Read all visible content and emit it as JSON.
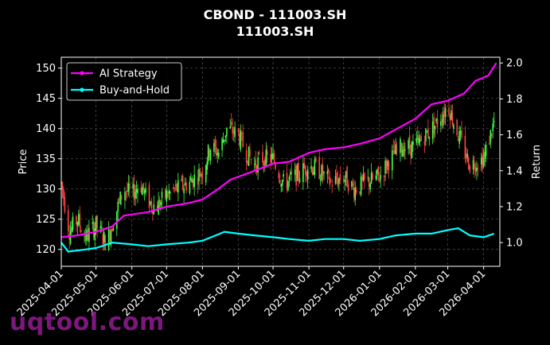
{
  "title_line1": "CBOND - 111003.SH",
  "title_line2": "111003.SH",
  "watermark": "uqtool.com",
  "chart_data": {
    "type": "line",
    "grid": true,
    "legend_placement": "top-left",
    "ylabel": "Price",
    "ylabel_right": "Return",
    "ylim": [
      117.2,
      151.8
    ],
    "ylim_right": [
      0.868,
      2.032
    ],
    "xlim": [
      "2025-04-01",
      "2026-04-15"
    ],
    "x_ticks": [
      "2025-04-01",
      "2025-05-01",
      "2025-06-01",
      "2025-07-01",
      "2025-08-01",
      "2025-09-01",
      "2025-10-01",
      "2025-11-01",
      "2025-12-01",
      "2026-01-01",
      "2026-02-01",
      "2026-03-01",
      "2026-04-01"
    ],
    "y_ticks": [
      120,
      125,
      130,
      135,
      140,
      145,
      150
    ],
    "y_ticks_right": [
      1.0,
      1.2,
      1.4,
      1.6,
      1.8,
      2.0
    ],
    "candle_colors": {
      "up": "#44ff44",
      "down": "#ff4444"
    },
    "price_close": [
      {
        "x": "2025-04-01",
        "y": 131
      },
      {
        "x": "2025-04-08",
        "y": 123
      },
      {
        "x": "2025-04-15",
        "y": 125
      },
      {
        "x": "2025-04-22",
        "y": 122
      },
      {
        "x": "2025-05-01",
        "y": 124
      },
      {
        "x": "2025-05-10",
        "y": 121
      },
      {
        "x": "2025-05-18",
        "y": 126
      },
      {
        "x": "2025-05-25",
        "y": 130
      },
      {
        "x": "2025-06-01",
        "y": 129
      },
      {
        "x": "2025-06-08",
        "y": 131
      },
      {
        "x": "2025-06-15",
        "y": 128
      },
      {
        "x": "2025-06-22",
        "y": 127
      },
      {
        "x": "2025-07-01",
        "y": 129
      },
      {
        "x": "2025-07-10",
        "y": 130
      },
      {
        "x": "2025-07-20",
        "y": 131
      },
      {
        "x": "2025-08-01",
        "y": 133
      },
      {
        "x": "2025-08-08",
        "y": 137
      },
      {
        "x": "2025-08-15",
        "y": 136
      },
      {
        "x": "2025-08-22",
        "y": 140
      },
      {
        "x": "2025-09-01",
        "y": 139
      },
      {
        "x": "2025-09-08",
        "y": 136
      },
      {
        "x": "2025-09-15",
        "y": 134
      },
      {
        "x": "2025-09-22",
        "y": 135
      },
      {
        "x": "2025-10-01",
        "y": 135
      },
      {
        "x": "2025-10-10",
        "y": 131
      },
      {
        "x": "2025-10-20",
        "y": 132
      },
      {
        "x": "2025-11-01",
        "y": 134
      },
      {
        "x": "2025-11-10",
        "y": 133
      },
      {
        "x": "2025-11-20",
        "y": 131
      },
      {
        "x": "2025-12-01",
        "y": 132
      },
      {
        "x": "2025-12-10",
        "y": 130
      },
      {
        "x": "2025-12-20",
        "y": 131
      },
      {
        "x": "2026-01-01",
        "y": 132
      },
      {
        "x": "2026-01-10",
        "y": 135
      },
      {
        "x": "2026-01-20",
        "y": 137
      },
      {
        "x": "2026-02-01",
        "y": 137
      },
      {
        "x": "2026-02-10",
        "y": 139
      },
      {
        "x": "2026-02-20",
        "y": 141
      },
      {
        "x": "2026-03-01",
        "y": 144
      },
      {
        "x": "2026-03-10",
        "y": 139
      },
      {
        "x": "2026-03-20",
        "y": 134
      },
      {
        "x": "2026-04-01",
        "y": 135
      },
      {
        "x": "2026-04-10",
        "y": 141
      }
    ],
    "series": [
      {
        "name": "AI Strategy",
        "color": "#ff00ff",
        "axis": "right",
        "points": [
          {
            "x": "2025-04-01",
            "y": 1.03
          },
          {
            "x": "2025-04-15",
            "y": 1.04
          },
          {
            "x": "2025-05-01",
            "y": 1.06
          },
          {
            "x": "2025-05-15",
            "y": 1.09
          },
          {
            "x": "2025-05-25",
            "y": 1.15
          },
          {
            "x": "2025-06-15",
            "y": 1.17
          },
          {
            "x": "2025-07-01",
            "y": 1.2
          },
          {
            "x": "2025-07-20",
            "y": 1.22
          },
          {
            "x": "2025-08-01",
            "y": 1.24
          },
          {
            "x": "2025-08-15",
            "y": 1.3
          },
          {
            "x": "2025-08-25",
            "y": 1.35
          },
          {
            "x": "2025-09-15",
            "y": 1.4
          },
          {
            "x": "2025-10-01",
            "y": 1.44
          },
          {
            "x": "2025-10-15",
            "y": 1.45
          },
          {
            "x": "2025-11-01",
            "y": 1.5
          },
          {
            "x": "2025-11-15",
            "y": 1.52
          },
          {
            "x": "2025-12-01",
            "y": 1.53
          },
          {
            "x": "2025-12-15",
            "y": 1.55
          },
          {
            "x": "2026-01-01",
            "y": 1.58
          },
          {
            "x": "2026-01-15",
            "y": 1.63
          },
          {
            "x": "2026-02-01",
            "y": 1.69
          },
          {
            "x": "2026-02-15",
            "y": 1.77
          },
          {
            "x": "2026-03-01",
            "y": 1.79
          },
          {
            "x": "2026-03-15",
            "y": 1.83
          },
          {
            "x": "2026-03-25",
            "y": 1.9
          },
          {
            "x": "2026-04-05",
            "y": 1.93
          },
          {
            "x": "2026-04-12",
            "y": 2.0
          }
        ]
      },
      {
        "name": "Buy-and-Hold",
        "color": "#00ffff",
        "axis": "right",
        "points": [
          {
            "x": "2025-04-01",
            "y": 1.0
          },
          {
            "x": "2025-04-07",
            "y": 0.95
          },
          {
            "x": "2025-04-20",
            "y": 0.96
          },
          {
            "x": "2025-05-01",
            "y": 0.97
          },
          {
            "x": "2025-05-15",
            "y": 1.0
          },
          {
            "x": "2025-06-01",
            "y": 0.99
          },
          {
            "x": "2025-06-15",
            "y": 0.98
          },
          {
            "x": "2025-07-01",
            "y": 0.99
          },
          {
            "x": "2025-07-20",
            "y": 1.0
          },
          {
            "x": "2025-08-01",
            "y": 1.01
          },
          {
            "x": "2025-08-20",
            "y": 1.06
          },
          {
            "x": "2025-09-01",
            "y": 1.05
          },
          {
            "x": "2025-09-15",
            "y": 1.04
          },
          {
            "x": "2025-10-01",
            "y": 1.03
          },
          {
            "x": "2025-10-15",
            "y": 1.02
          },
          {
            "x": "2025-11-01",
            "y": 1.01
          },
          {
            "x": "2025-11-15",
            "y": 1.02
          },
          {
            "x": "2025-12-01",
            "y": 1.02
          },
          {
            "x": "2025-12-15",
            "y": 1.01
          },
          {
            "x": "2026-01-01",
            "y": 1.02
          },
          {
            "x": "2026-01-15",
            "y": 1.04
          },
          {
            "x": "2026-02-01",
            "y": 1.05
          },
          {
            "x": "2026-02-15",
            "y": 1.05
          },
          {
            "x": "2026-03-01",
            "y": 1.07
          },
          {
            "x": "2026-03-10",
            "y": 1.08
          },
          {
            "x": "2026-03-20",
            "y": 1.04
          },
          {
            "x": "2026-04-01",
            "y": 1.03
          },
          {
            "x": "2026-04-10",
            "y": 1.05
          }
        ]
      }
    ]
  }
}
